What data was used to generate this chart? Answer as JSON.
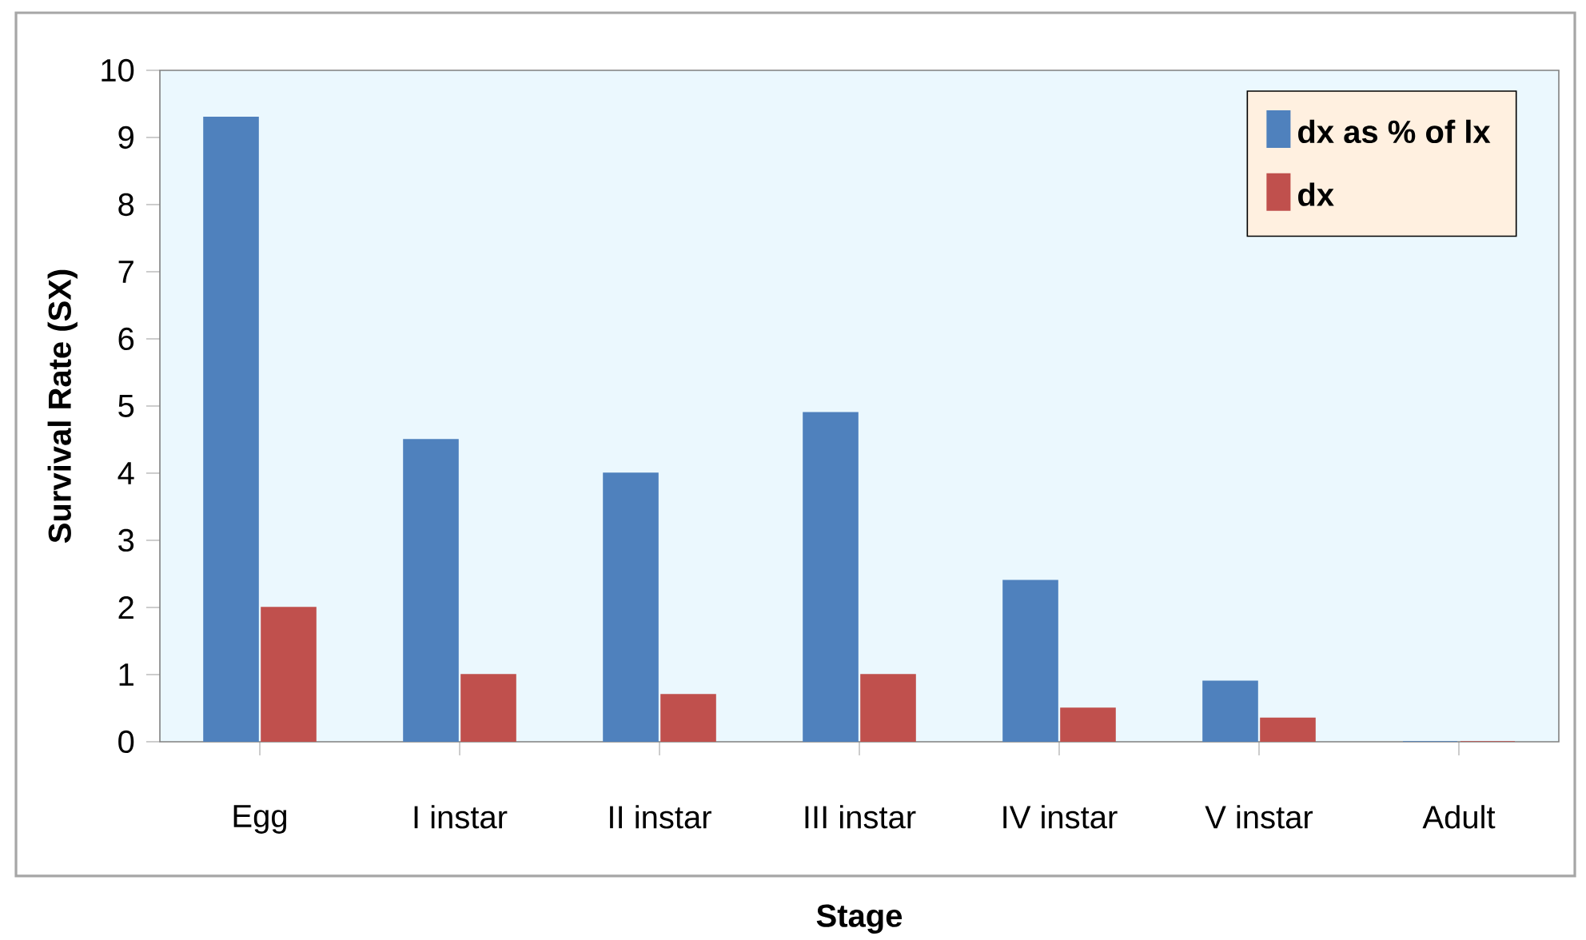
{
  "chart_data": {
    "type": "bar",
    "xlabel": "Stage",
    "ylabel": "Survival Rate (SX)",
    "categories": [
      "Egg",
      "I instar",
      "II instar",
      "III instar",
      "IV instar",
      "V instar",
      "Adult"
    ],
    "series": [
      {
        "name": "dx as % of lx",
        "color": "#4f81bd",
        "values": [
          9.3,
          4.5,
          4.0,
          4.9,
          2.4,
          0.9,
          0
        ]
      },
      {
        "name": "dx",
        "color": "#c0504d",
        "values": [
          2.0,
          1.0,
          0.7,
          1.0,
          0.5,
          0.35,
          0
        ]
      }
    ],
    "ylim": [
      0,
      10
    ],
    "yticks": [
      0,
      1,
      2,
      3,
      4,
      5,
      6,
      7,
      8,
      9,
      10
    ],
    "legend": "top right"
  }
}
